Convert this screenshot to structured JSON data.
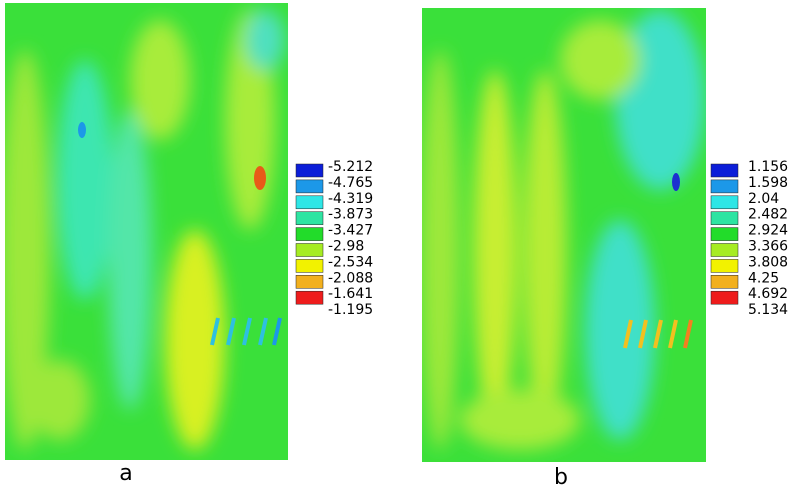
{
  "panels": [
    {
      "label": "a",
      "legend": {
        "colors": [
          "#0c1ed8",
          "#1c98e8",
          "#2ee6e6",
          "#2ee4a2",
          "#22dc2a",
          "#a6ec22",
          "#f2f200",
          "#f2b01e",
          "#ee1c1c"
        ],
        "labels": [
          "-5.212",
          "-4.765",
          "-4.319",
          "-3.873",
          "-3.427",
          "-2.98",
          "-2.534",
          "-2.088",
          "-1.641",
          "-1.195"
        ]
      }
    },
    {
      "label": "b",
      "legend": {
        "colors": [
          "#0c1ed8",
          "#1c98e8",
          "#2ee6e6",
          "#2ee4a2",
          "#22dc2a",
          "#a6ec22",
          "#f2f200",
          "#f2b01e",
          "#ee1c1c"
        ],
        "labels": [
          "1.156",
          "1.598",
          "2.04",
          "2.482",
          "2.924",
          "3.366",
          "3.808",
          "4.25",
          "4.692",
          "5.134"
        ]
      }
    }
  ]
}
